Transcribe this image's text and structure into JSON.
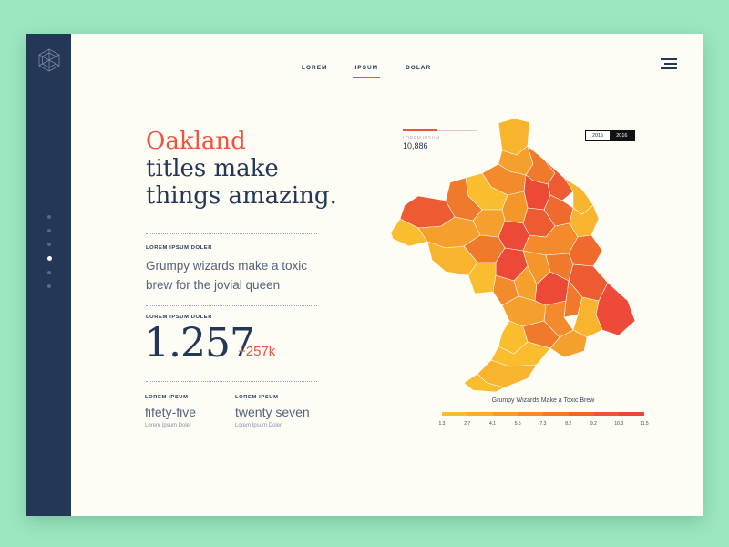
{
  "nav": {
    "items": [
      "LOREM",
      "IPSUM",
      "DOLAR"
    ],
    "active_index": 1
  },
  "sidebar": {
    "dots": 6,
    "active_dot": 3
  },
  "headline": {
    "accent": "Oakland",
    "line2": "titles make",
    "line3": "things amazing."
  },
  "section1": {
    "label": "LOREM IPSUM DOLER",
    "text": "Grumpy wizards make a toxic brew for the jovial queen"
  },
  "section2": {
    "label": "LOREM IPSUM DOLER",
    "value": "1.257",
    "delta": "+257k"
  },
  "stats": [
    {
      "label": "LOREM IPSUM",
      "value": "fifety-five",
      "sub": "Lorem Ipsum Doler"
    },
    {
      "label": "LOREM IPSUM",
      "value": "twenty seven",
      "sub": "Lorem Ipsum Doler"
    }
  ],
  "map": {
    "stat_label": "LOREM IPSUM",
    "stat_value": "10,886",
    "years": [
      "2015",
      "2016"
    ],
    "active_year": "2016",
    "legend_title": "Grumpy Wizards Make a Toxic Brew",
    "legend_ticks": [
      "1.3",
      "2.7",
      "4.1",
      "5.5",
      "7.3",
      "8.2",
      "9.2",
      "10.3",
      "11.5"
    ],
    "legend_colors": [
      "#f9bd2e",
      "#f8ad2c",
      "#f79c2b",
      "#f58a2b",
      "#f3782c",
      "#f0652d",
      "#ee5333",
      "#ec4638"
    ]
  },
  "colors": {
    "accent": "#ee5340",
    "navy": "#243757",
    "background": "#9be7c0"
  }
}
